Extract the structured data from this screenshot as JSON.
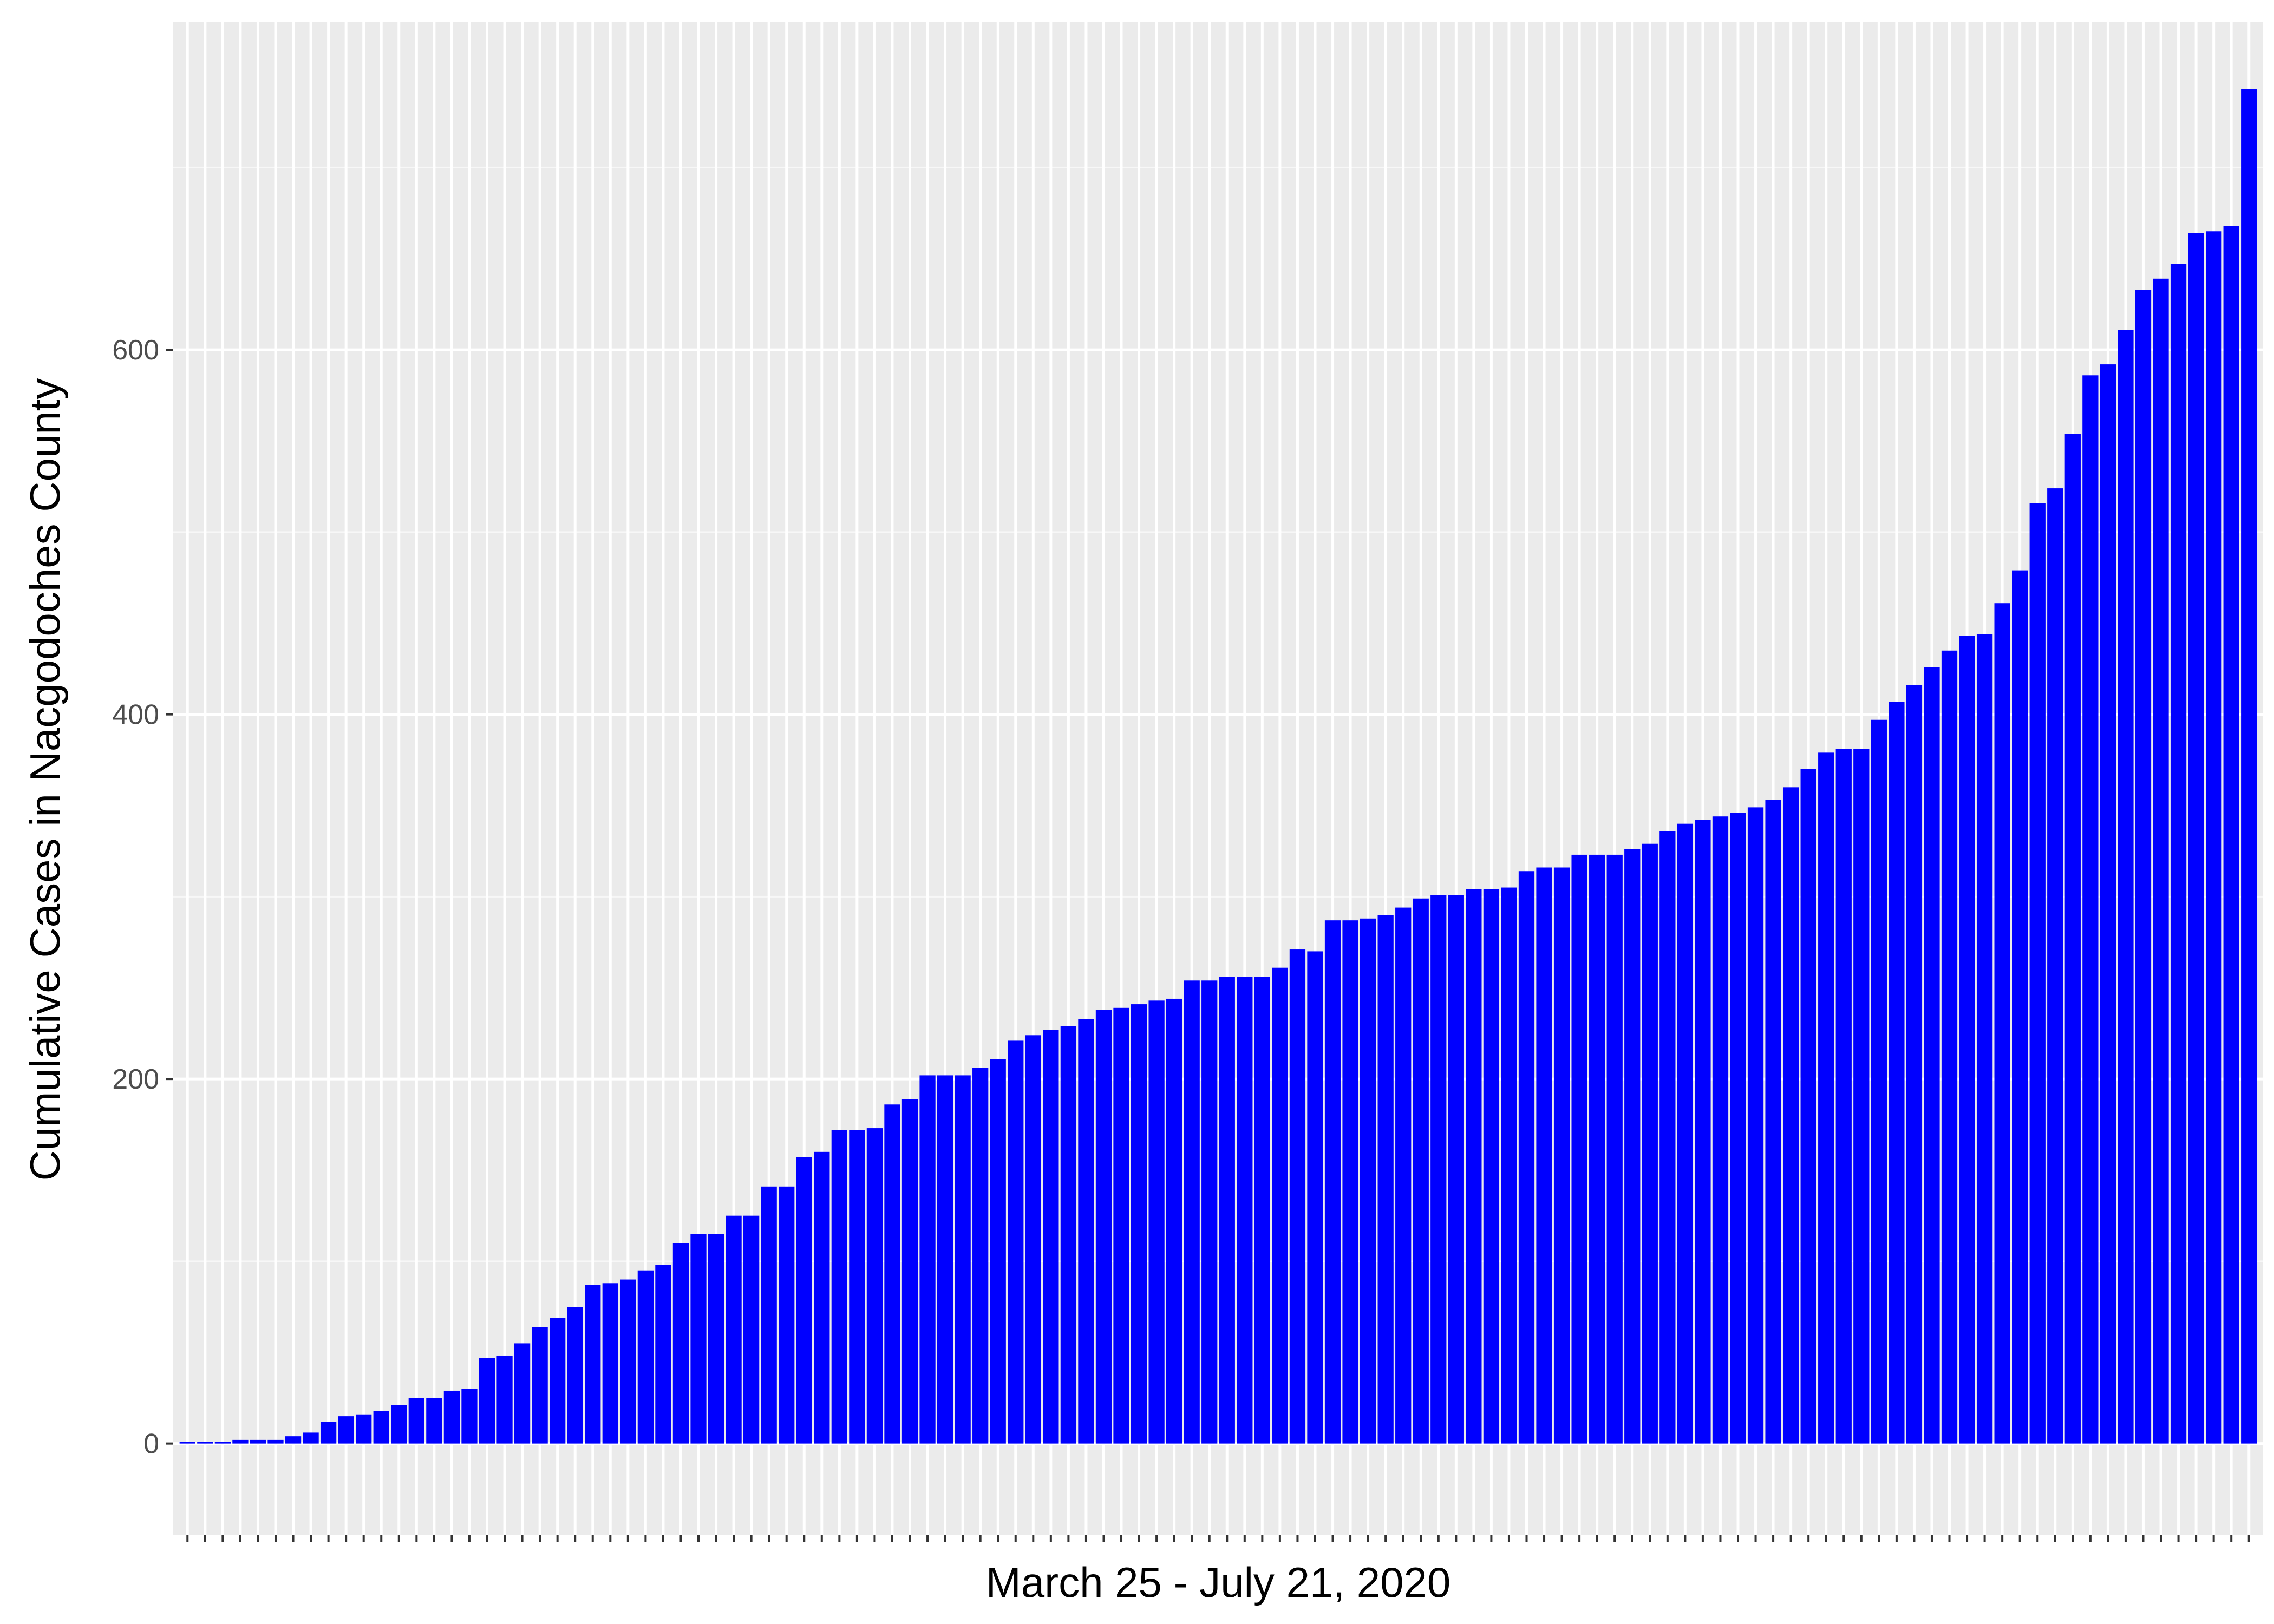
{
  "chart_data": {
    "type": "bar",
    "title": "",
    "xlabel": "March 25 - July 21, 2020",
    "ylabel": "Cumulative Cases in Nacgodoches County",
    "ylim": [
      -50,
      780
    ],
    "yticks": [
      0,
      200,
      400,
      600
    ],
    "x_tick_labels_visible": false,
    "grid": true,
    "legend": "none",
    "colors": {
      "bar": "#0000ff",
      "panel": "#ebebeb",
      "grid_major": "#ffffff",
      "grid_minor": "#f7f7f7",
      "tick_text": "#4d4d4d"
    },
    "series": [
      {
        "values": [
          1,
          1,
          1,
          2,
          2,
          2,
          4,
          6,
          12,
          15,
          16,
          18,
          21,
          25,
          25,
          29,
          30,
          47,
          48,
          55,
          64,
          69,
          75,
          87,
          88,
          90,
          95,
          98,
          110,
          115,
          115,
          125,
          125,
          141,
          141,
          157,
          160,
          172,
          172,
          173,
          186,
          189,
          202,
          202,
          202,
          206,
          211,
          221,
          224,
          227,
          229,
          233,
          238,
          239,
          241,
          243,
          244,
          254,
          254,
          256,
          256,
          256,
          261,
          271,
          270,
          287,
          287,
          288,
          290,
          294,
          299,
          301,
          301,
          304,
          304,
          305,
          314,
          316,
          316,
          323,
          323,
          323,
          326,
          329,
          336,
          340,
          342,
          344,
          346,
          349,
          353,
          360,
          370,
          379,
          381,
          381,
          397,
          407,
          416,
          426,
          435,
          443,
          444,
          461,
          479,
          516,
          524,
          554,
          586,
          592,
          611,
          633,
          639,
          647,
          664,
          665,
          668,
          743
        ]
      }
    ]
  }
}
